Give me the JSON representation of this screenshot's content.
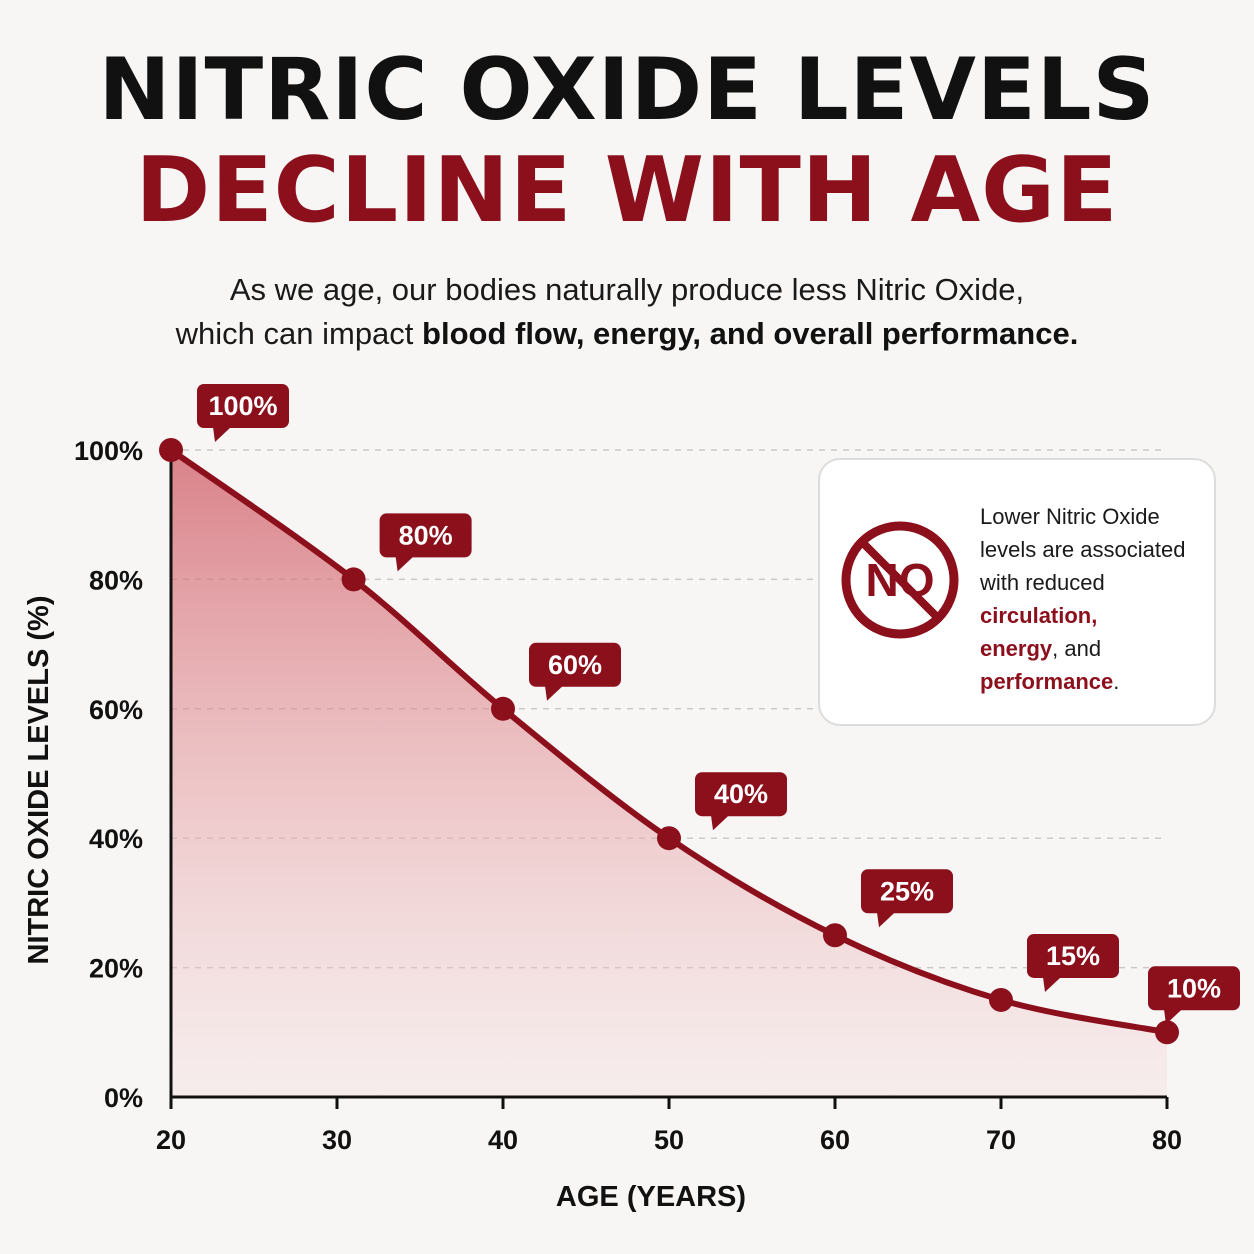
{
  "header": {
    "title_line1": "NITRIC OXIDE LEVELS",
    "title_line2": "DECLINE WITH AGE",
    "subtitle_line1": "As we age, our bodies naturally produce less Nitric Oxide,",
    "subtitle_line2_plain": "which can impact ",
    "subtitle_line2_bold": "blood flow, energy, and overall performance."
  },
  "info_box": {
    "icon": "no-symbol-icon",
    "icon_text": "NO",
    "text_plain1": "Lower Nitric Oxide levels are associated with reduced ",
    "highlight1": "circulation,",
    "highlight2": "energy",
    "text_plain2": ", and ",
    "highlight3": "performance",
    "text_plain3": "."
  },
  "colors": {
    "accent": "#8c0f1c",
    "title_dark": "#111111",
    "background": "#f7f6f5"
  },
  "chart_data": {
    "type": "area",
    "title": "",
    "xlabel": "AGE (YEARS)",
    "ylabel": "NITRIC OXIDE LEVELS (%)",
    "xlim": [
      20,
      80
    ],
    "ylim": [
      0,
      100
    ],
    "x_ticks": [
      "20",
      "30",
      "40",
      "50",
      "60",
      "70",
      "80"
    ],
    "y_ticks": [
      "0%",
      "20%",
      "40%",
      "60%",
      "80%",
      "100%"
    ],
    "grid": "horizontal dashed",
    "series": [
      {
        "x": [
          20,
          31,
          40,
          50,
          60,
          70,
          80
        ],
        "y": [
          100,
          80,
          60,
          40,
          25,
          15,
          10
        ],
        "labels": [
          "100%",
          "80%",
          "60%",
          "40%",
          "25%",
          "15%",
          "10%"
        ]
      }
    ]
  }
}
